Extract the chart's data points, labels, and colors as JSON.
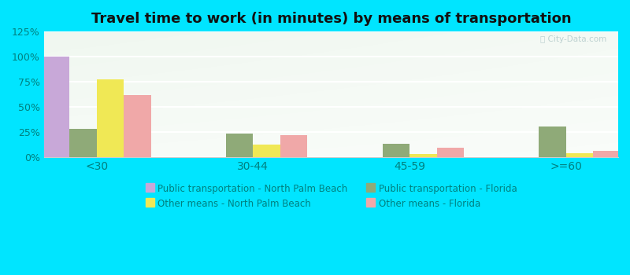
{
  "title": "Travel time to work (in minutes) by means of transportation",
  "categories": [
    "<30",
    "30-44",
    "45-59",
    ">=60"
  ],
  "series": [
    {
      "label": "Public transportation - North Palm Beach",
      "color": "#c8a8d8",
      "values": [
        100,
        0,
        0,
        0
      ]
    },
    {
      "label": "Public transportation - Florida",
      "color": "#8faa78",
      "values": [
        28,
        23,
        13,
        30
      ]
    },
    {
      "label": "Other means - North Palm Beach",
      "color": "#f0e855",
      "values": [
        77,
        12,
        3,
        4
      ]
    },
    {
      "label": "Other means - Florida",
      "color": "#f0a8a8",
      "values": [
        62,
        22,
        9,
        6
      ]
    }
  ],
  "ylim": [
    0,
    125
  ],
  "yticks": [
    0,
    25,
    50,
    75,
    100,
    125
  ],
  "yticklabels": [
    "0%",
    "25%",
    "50%",
    "75%",
    "100%",
    "125%"
  ],
  "outer_bg": "#00e5ff",
  "plot_bg_colors": [
    "#e8f5e0",
    "#f5fef5",
    "#ffffff"
  ],
  "title_fontsize": 13,
  "bar_width": 0.13,
  "tick_color": "#008080",
  "grid_color": "#d8ead8",
  "watermark_color": "#b0c8c8"
}
